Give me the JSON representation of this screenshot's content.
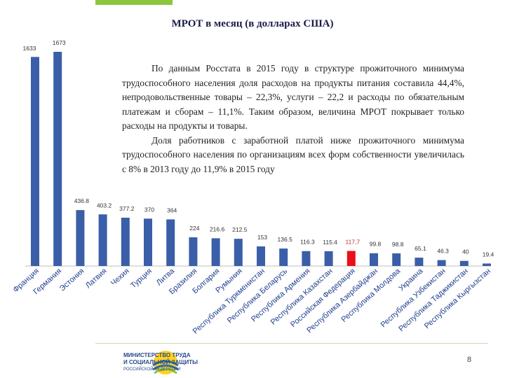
{
  "slide": {
    "title": "МРОТ в месяц (в долларах США)",
    "paragraph1": "По данным Росстата в 2015 году в структуре прожиточного минимума трудоспособного населения доля расходов на продукты питания составила 44,4%, непродовольственные товары – 22,3%, услуги – 22,2 и расходы по обязательным платежам и сборам – 11,1%. Таким образом, величина МРОТ покрывает только расходы на продукты и товары.",
    "paragraph2": "Доля работников с заработной платой ниже прожиточного минимума трудоспособного населения по организациям всех форм собственности увеличилась с 8% в 2013 году до 11,9% в 2015 году",
    "page_number": "8",
    "logo_line1": "МИНИСТЕРСТВО ТРУДА",
    "logo_line2": "И СОЦИАЛЬНОЙ ЗАЩИТЫ",
    "logo_line3": "РОССИЙСКОЙ ФЕДЕРАЦИИ"
  },
  "colors": {
    "bar": "#3a5fa8",
    "highlight": "#e8101a",
    "highlight_label": "#c0282e",
    "accent": "#8cc63f"
  },
  "chart_data": {
    "type": "bar",
    "title": "МРОТ в месяц (в долларах США)",
    "categories": [
      "Франция",
      "Германия",
      "Эстония",
      "Латвия",
      "Чехия",
      "Турция",
      "Литва",
      "Бразилия",
      "Болгария",
      "Румыния",
      "Республика Туркменистан",
      "Республика Беларусь",
      "Республика Армения",
      "Республика Казахстан",
      "Российская Федерация",
      "Республика Азербайджан",
      "Республика Молдова",
      "Украина",
      "Республика Узбекистан",
      "Республика Таджикистан",
      "Республика Кыргызстан"
    ],
    "values": [
      1633,
      1673,
      436.8,
      403.2,
      377.2,
      370,
      364,
      224,
      216.6,
      212.5,
      153,
      136.5,
      116.3,
      115.4,
      117.7,
      99.8,
      98.8,
      65.1,
      46.3,
      40,
      19.4
    ],
    "value_labels": [
      "1633",
      "1673",
      "436.8",
      "403.2",
      "377.2",
      "370",
      "364",
      "224",
      "216.6",
      "212.5",
      "153",
      "136.5",
      "116.3",
      "115.4",
      "117,7",
      "99.8",
      "98.8",
      "65.1",
      "46.3",
      "40",
      "19.4"
    ],
    "highlight_index": 14,
    "ylim": [
      0,
      1673
    ],
    "grid": false,
    "legend": "none"
  }
}
